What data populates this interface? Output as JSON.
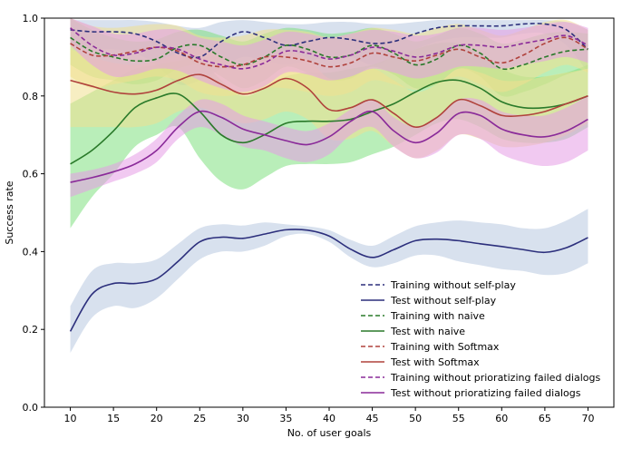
{
  "chart_data": {
    "type": "line",
    "xlabel": "No. of user goals",
    "ylabel": "Success rate",
    "xlim": [
      7,
      73
    ],
    "ylim": [
      0.0,
      1.0
    ],
    "xticks": [
      10,
      15,
      20,
      25,
      30,
      35,
      40,
      45,
      50,
      55,
      60,
      65,
      70
    ],
    "yticks": [
      0.0,
      0.2,
      0.4,
      0.6,
      0.8,
      1.0
    ],
    "grid": false,
    "legend_position": "lower-right",
    "x": [
      10,
      12.5,
      15,
      17.5,
      20,
      22.5,
      25,
      27.5,
      30,
      32.5,
      35,
      37.5,
      40,
      42.5,
      45,
      47.5,
      50,
      52.5,
      55,
      57.5,
      60,
      62.5,
      65,
      67.5,
      70
    ],
    "series": [
      {
        "name": "Training without self-play",
        "color": "#2c2f7c",
        "dashed": true,
        "values": [
          0.97,
          0.965,
          0.965,
          0.96,
          0.94,
          0.91,
          0.9,
          0.94,
          0.965,
          0.95,
          0.93,
          0.94,
          0.95,
          0.945,
          0.935,
          0.94,
          0.96,
          0.975,
          0.98,
          0.98,
          0.98,
          0.985,
          0.985,
          0.97,
          0.92
        ],
        "upper": [
          0.995,
          0.995,
          0.995,
          0.995,
          0.99,
          0.98,
          0.975,
          0.99,
          0.995,
          0.99,
          0.985,
          0.985,
          0.99,
          0.99,
          0.985,
          0.985,
          0.99,
          0.995,
          0.995,
          0.995,
          0.995,
          0.995,
          0.995,
          0.99,
          0.97
        ],
        "lower": [
          0.93,
          0.92,
          0.92,
          0.91,
          0.88,
          0.83,
          0.84,
          0.87,
          0.9,
          0.89,
          0.88,
          0.89,
          0.9,
          0.9,
          0.88,
          0.9,
          0.92,
          0.94,
          0.95,
          0.95,
          0.95,
          0.96,
          0.96,
          0.93,
          0.86
        ]
      },
      {
        "name": "Test without self-play",
        "color": "#2c2f7c",
        "dashed": false,
        "values": [
          0.195,
          0.29,
          0.318,
          0.318,
          0.33,
          0.375,
          0.425,
          0.437,
          0.434,
          0.445,
          0.456,
          0.455,
          0.44,
          0.406,
          0.385,
          0.405,
          0.428,
          0.432,
          0.428,
          0.42,
          0.413,
          0.405,
          0.398,
          0.41,
          0.436
        ],
        "upper": [
          0.26,
          0.35,
          0.37,
          0.37,
          0.38,
          0.42,
          0.46,
          0.47,
          0.467,
          0.475,
          0.47,
          0.465,
          0.455,
          0.43,
          0.415,
          0.44,
          0.465,
          0.475,
          0.48,
          0.475,
          0.47,
          0.46,
          0.46,
          0.48,
          0.51
        ],
        "lower": [
          0.14,
          0.23,
          0.26,
          0.255,
          0.28,
          0.33,
          0.38,
          0.4,
          0.4,
          0.415,
          0.44,
          0.445,
          0.425,
          0.385,
          0.36,
          0.37,
          0.39,
          0.39,
          0.375,
          0.365,
          0.355,
          0.35,
          0.34,
          0.345,
          0.37
        ]
      },
      {
        "name": "Training with naive",
        "color": "#2a7a2a",
        "dashed": true,
        "values": [
          0.95,
          0.915,
          0.9,
          0.89,
          0.895,
          0.925,
          0.93,
          0.9,
          0.88,
          0.9,
          0.93,
          0.92,
          0.9,
          0.905,
          0.93,
          0.91,
          0.88,
          0.895,
          0.93,
          0.91,
          0.87,
          0.88,
          0.9,
          0.915,
          0.92
        ],
        "upper": [
          1.0,
          0.97,
          0.95,
          0.94,
          0.945,
          0.965,
          0.97,
          0.955,
          0.94,
          0.96,
          0.975,
          0.97,
          0.96,
          0.965,
          0.975,
          0.96,
          0.94,
          0.955,
          0.975,
          0.96,
          0.935,
          0.945,
          0.96,
          0.965,
          0.96
        ],
        "lower": [
          0.88,
          0.85,
          0.84,
          0.83,
          0.84,
          0.87,
          0.88,
          0.85,
          0.82,
          0.84,
          0.875,
          0.86,
          0.84,
          0.845,
          0.875,
          0.855,
          0.82,
          0.83,
          0.87,
          0.85,
          0.8,
          0.81,
          0.83,
          0.855,
          0.87
        ]
      },
      {
        "name": "Test with naive",
        "color": "#2a7a2a",
        "dashed": false,
        "values": [
          0.625,
          0.66,
          0.71,
          0.77,
          0.795,
          0.805,
          0.76,
          0.7,
          0.68,
          0.7,
          0.73,
          0.735,
          0.735,
          0.74,
          0.76,
          0.78,
          0.81,
          0.835,
          0.84,
          0.82,
          0.785,
          0.77,
          0.77,
          0.78,
          0.8
        ],
        "upper": [
          0.78,
          0.81,
          0.84,
          0.87,
          0.88,
          0.89,
          0.895,
          0.84,
          0.8,
          0.82,
          0.85,
          0.86,
          0.86,
          0.87,
          0.88,
          0.9,
          0.92,
          0.935,
          0.935,
          0.91,
          0.87,
          0.85,
          0.85,
          0.86,
          0.88
        ],
        "lower": [
          0.46,
          0.54,
          0.6,
          0.67,
          0.7,
          0.72,
          0.64,
          0.58,
          0.56,
          0.59,
          0.62,
          0.625,
          0.625,
          0.63,
          0.65,
          0.67,
          0.7,
          0.73,
          0.74,
          0.72,
          0.69,
          0.68,
          0.68,
          0.69,
          0.72
        ]
      },
      {
        "name": "Training with Softmax",
        "color": "#b0423c",
        "dashed": true,
        "values": [
          0.935,
          0.905,
          0.905,
          0.915,
          0.925,
          0.915,
          0.885,
          0.875,
          0.88,
          0.9,
          0.9,
          0.89,
          0.875,
          0.885,
          0.91,
          0.9,
          0.89,
          0.905,
          0.92,
          0.9,
          0.885,
          0.905,
          0.935,
          0.95,
          0.92
        ],
        "upper": [
          1.0,
          0.98,
          0.975,
          0.98,
          0.985,
          0.98,
          0.955,
          0.95,
          0.955,
          0.97,
          0.97,
          0.965,
          0.95,
          0.96,
          0.975,
          0.97,
          0.96,
          0.975,
          0.985,
          0.97,
          0.955,
          0.97,
          0.99,
          0.995,
          0.97
        ],
        "lower": [
          0.85,
          0.82,
          0.83,
          0.84,
          0.85,
          0.84,
          0.81,
          0.8,
          0.805,
          0.82,
          0.82,
          0.81,
          0.8,
          0.81,
          0.84,
          0.83,
          0.815,
          0.83,
          0.85,
          0.83,
          0.81,
          0.83,
          0.86,
          0.88,
          0.86
        ]
      },
      {
        "name": "Test with Softmax",
        "color": "#b0423c",
        "dashed": false,
        "values": [
          0.84,
          0.825,
          0.81,
          0.805,
          0.815,
          0.84,
          0.855,
          0.83,
          0.805,
          0.82,
          0.845,
          0.82,
          0.765,
          0.77,
          0.79,
          0.755,
          0.72,
          0.745,
          0.79,
          0.775,
          0.75,
          0.75,
          0.76,
          0.78,
          0.8
        ],
        "upper": [
          0.92,
          0.9,
          0.885,
          0.88,
          0.89,
          0.91,
          0.925,
          0.9,
          0.88,
          0.895,
          0.915,
          0.895,
          0.845,
          0.85,
          0.87,
          0.84,
          0.81,
          0.83,
          0.87,
          0.86,
          0.84,
          0.84,
          0.85,
          0.86,
          0.87
        ],
        "lower": [
          0.72,
          0.72,
          0.72,
          0.72,
          0.73,
          0.76,
          0.77,
          0.75,
          0.73,
          0.74,
          0.76,
          0.74,
          0.69,
          0.69,
          0.71,
          0.67,
          0.64,
          0.66,
          0.7,
          0.69,
          0.67,
          0.67,
          0.68,
          0.7,
          0.73
        ]
      },
      {
        "name": "Training without prioratizing failed dialogs",
        "color": "#8a2a99",
        "dashed": true,
        "values": [
          0.975,
          0.93,
          0.905,
          0.91,
          0.925,
          0.92,
          0.895,
          0.88,
          0.87,
          0.885,
          0.915,
          0.91,
          0.895,
          0.905,
          0.925,
          0.915,
          0.9,
          0.91,
          0.93,
          0.93,
          0.925,
          0.935,
          0.945,
          0.955,
          0.93
        ],
        "upper": [
          1.0,
          0.98,
          0.96,
          0.96,
          0.97,
          0.97,
          0.95,
          0.94,
          0.93,
          0.945,
          0.965,
          0.96,
          0.95,
          0.96,
          0.97,
          0.965,
          0.955,
          0.96,
          0.975,
          0.975,
          0.97,
          0.975,
          0.985,
          0.99,
          0.975
        ],
        "lower": [
          0.93,
          0.88,
          0.85,
          0.855,
          0.87,
          0.865,
          0.84,
          0.82,
          0.81,
          0.825,
          0.86,
          0.855,
          0.84,
          0.85,
          0.87,
          0.86,
          0.845,
          0.855,
          0.875,
          0.875,
          0.87,
          0.88,
          0.89,
          0.9,
          0.885
        ]
      },
      {
        "name": "Test without prioratizing failed dialogs",
        "color": "#8a2a99",
        "dashed": false,
        "values": [
          0.578,
          0.59,
          0.605,
          0.625,
          0.66,
          0.72,
          0.76,
          0.745,
          0.715,
          0.7,
          0.685,
          0.675,
          0.695,
          0.735,
          0.76,
          0.71,
          0.68,
          0.705,
          0.755,
          0.75,
          0.715,
          0.7,
          0.695,
          0.71,
          0.74
        ],
        "upper": [
          0.6,
          0.61,
          0.625,
          0.65,
          0.69,
          0.75,
          0.79,
          0.78,
          0.75,
          0.735,
          0.72,
          0.71,
          0.73,
          0.765,
          0.79,
          0.745,
          0.72,
          0.745,
          0.79,
          0.79,
          0.76,
          0.75,
          0.75,
          0.77,
          0.8
        ],
        "lower": [
          0.54,
          0.56,
          0.58,
          0.6,
          0.63,
          0.69,
          0.72,
          0.7,
          0.67,
          0.66,
          0.64,
          0.63,
          0.65,
          0.7,
          0.72,
          0.67,
          0.64,
          0.655,
          0.7,
          0.69,
          0.65,
          0.63,
          0.62,
          0.63,
          0.66
        ]
      }
    ]
  },
  "band_colors": {
    "Training without self-play": "#b8c8e0",
    "Test without self-play": "#b8c8e0",
    "Training with naive": "#7fe07f",
    "Test with naive": "#7fe07f",
    "Training with Softmax": "#f0e090",
    "Test with Softmax": "#f0e090",
    "Training without prioratizing failed dialogs": "#e59de6",
    "Test without prioratizing failed dialogs": "#e59de6"
  }
}
